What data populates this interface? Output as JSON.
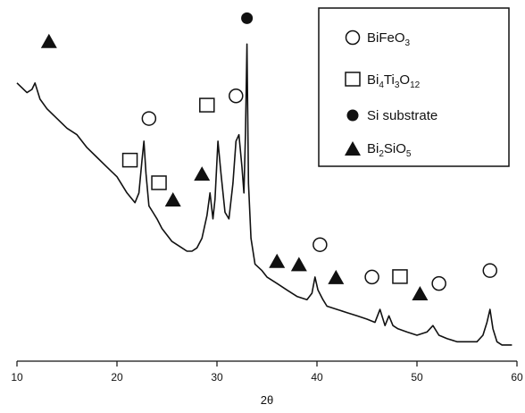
{
  "chart_data": {
    "type": "line",
    "xlabel": "2θ",
    "ylabel": "",
    "xlim": [
      10,
      60
    ],
    "x_ticks": [
      10,
      20,
      30,
      40,
      50,
      60
    ],
    "y_ticks_shown": false,
    "grid": false,
    "legend_position": "top-right",
    "legend": [
      {
        "marker": "open-circle",
        "parts": [
          {
            "t": "BiFeO"
          },
          {
            "t": "3",
            "sub": true
          }
        ]
      },
      {
        "marker": "open-square",
        "parts": [
          {
            "t": "Bi"
          },
          {
            "t": "4",
            "sub": true
          },
          {
            "t": "Ti"
          },
          {
            "t": "3",
            "sub": true
          },
          {
            "t": "O"
          },
          {
            "t": "12",
            "sub": true
          }
        ]
      },
      {
        "marker": "filled-circle",
        "parts": [
          {
            "t": "Si substrate"
          }
        ]
      },
      {
        "marker": "filled-triangle",
        "parts": [
          {
            "t": "Bi"
          },
          {
            "t": "2",
            "sub": true
          },
          {
            "t": "SiO"
          },
          {
            "t": "5",
            "sub": true
          }
        ]
      }
    ],
    "series": [
      {
        "x": [
          10,
          11,
          11.5,
          11.8,
          12.3,
          13,
          14,
          15,
          16,
          17,
          18,
          19,
          20,
          21,
          21.8,
          22.2,
          22.5,
          22.7,
          22.9,
          23.2,
          23.6,
          24,
          24.5,
          25,
          25.5,
          26,
          26.5,
          27,
          27.5,
          28,
          28.5,
          29,
          29.3,
          29.6,
          29.8,
          30.1,
          30.4,
          30.8,
          31.2,
          31.6,
          31.9,
          32.2,
          32.5,
          32.7,
          32.85,
          33,
          33.15,
          33.4,
          33.8,
          34.5,
          35,
          36,
          37,
          38,
          39,
          39.5,
          39.8,
          40.1,
          40.6,
          41,
          42,
          43,
          44,
          45,
          45.8,
          46.3,
          46.8,
          47.2,
          47.6,
          48.1,
          49,
          50,
          51,
          51.6,
          52.2,
          53,
          54,
          55,
          56,
          56.6,
          57,
          57.3,
          57.6,
          58,
          58.5,
          59,
          59.5
        ],
        "y": [
          86,
          83,
          84,
          86,
          81,
          78,
          75,
          72,
          70,
          66,
          63,
          60,
          57,
          52,
          49,
          52,
          62,
          68,
          58,
          48,
          46,
          44,
          41,
          39,
          37,
          36,
          35,
          34,
          34,
          35,
          38,
          45,
          52,
          44,
          50,
          68,
          58,
          46,
          44,
          55,
          68,
          70,
          60,
          52,
          70,
          98,
          55,
          38,
          30,
          28,
          26,
          24,
          22,
          20,
          19,
          21,
          26,
          22,
          19,
          17,
          16,
          15,
          14,
          13,
          12,
          16,
          11,
          14,
          11,
          10,
          9,
          8,
          9,
          11,
          8,
          7,
          6,
          6,
          6,
          8,
          12,
          16,
          10,
          6,
          5,
          5,
          5
        ]
      }
    ],
    "annotations": [
      {
        "marker": "filled-triangle",
        "x": 13.2,
        "y": 99
      },
      {
        "marker": "filled-circle",
        "x": 33.0,
        "y": 106
      },
      {
        "marker": "open-circle",
        "x": 23.2,
        "y": 75
      },
      {
        "marker": "open-square",
        "x": 21.3,
        "y": 62
      },
      {
        "marker": "open-square",
        "x": 24.2,
        "y": 55
      },
      {
        "marker": "filled-triangle",
        "x": 25.6,
        "y": 50
      },
      {
        "marker": "filled-triangle",
        "x": 28.5,
        "y": 58
      },
      {
        "marker": "open-square",
        "x": 29.0,
        "y": 79
      },
      {
        "marker": "open-circle",
        "x": 31.9,
        "y": 82
      },
      {
        "marker": "filled-triangle",
        "x": 36.0,
        "y": 31
      },
      {
        "marker": "filled-triangle",
        "x": 38.2,
        "y": 30
      },
      {
        "marker": "open-circle",
        "x": 40.3,
        "y": 36
      },
      {
        "marker": "filled-triangle",
        "x": 41.9,
        "y": 26
      },
      {
        "marker": "open-circle",
        "x": 45.5,
        "y": 26
      },
      {
        "marker": "open-square",
        "x": 48.3,
        "y": 26
      },
      {
        "marker": "filled-triangle",
        "x": 50.3,
        "y": 21
      },
      {
        "marker": "open-circle",
        "x": 52.2,
        "y": 24
      },
      {
        "marker": "open-circle",
        "x": 57.3,
        "y": 28
      }
    ]
  }
}
